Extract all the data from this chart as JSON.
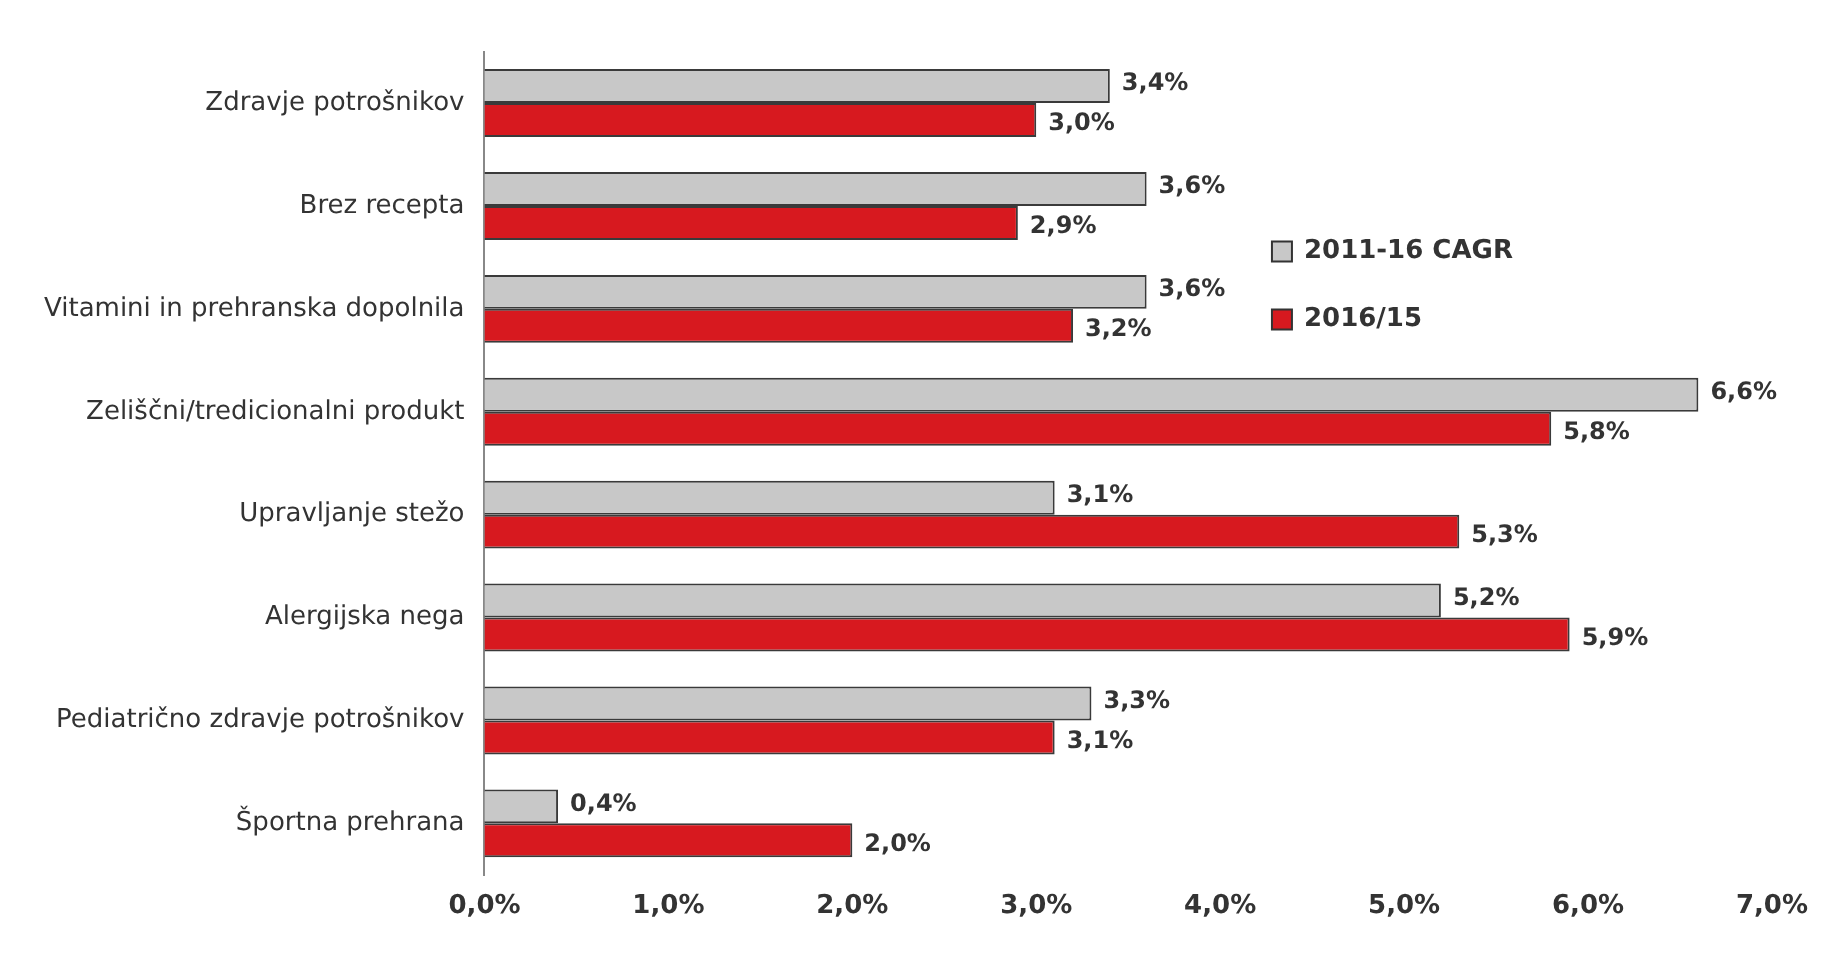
{
  "chart_data": {
    "type": "bar",
    "orientation": "horizontal",
    "categories": [
      "Zdravje potrošnikov",
      "Brez recepta",
      "Vitamini in prehranska dopolnila",
      "Zeliščni/tredicionalni produkt",
      "Upravljanje stežo",
      "Alergijska nega",
      "Pediatrično zdravje potrošnikov",
      "Športna prehrana"
    ],
    "series": [
      {
        "name": "2011-16 CAGR",
        "color": "#c8c8c8",
        "values": [
          3.4,
          3.6,
          3.6,
          6.6,
          3.1,
          5.2,
          3.3,
          0.4
        ],
        "value_labels": [
          "3,4%",
          "3,6%",
          "3,6%",
          "6,6%",
          "3,1%",
          "5,2%",
          "3,3%",
          "0,4%"
        ]
      },
      {
        "name": "2016/15",
        "color": "#d7191f",
        "values": [
          3.0,
          2.9,
          3.2,
          5.8,
          5.3,
          5.9,
          3.1,
          2.0
        ],
        "value_labels": [
          "3,0%",
          "2,9%",
          "3,2%",
          "5,8%",
          "5,3%",
          "5,9%",
          "3,1%",
          "2,0%"
        ]
      }
    ],
    "xlim": [
      0,
      7
    ],
    "xticks": [
      {
        "value": 0,
        "label": "0,0%"
      },
      {
        "value": 1,
        "label": "1,0%"
      },
      {
        "value": 2,
        "label": "2,0%"
      },
      {
        "value": 3,
        "label": "3,0%"
      },
      {
        "value": 4,
        "label": "4,0%"
      },
      {
        "value": 5,
        "label": "5,0%"
      },
      {
        "value": 6,
        "label": "6,0%"
      },
      {
        "value": 7,
        "label": "7,0%"
      }
    ],
    "grid": false,
    "legend": "right"
  }
}
